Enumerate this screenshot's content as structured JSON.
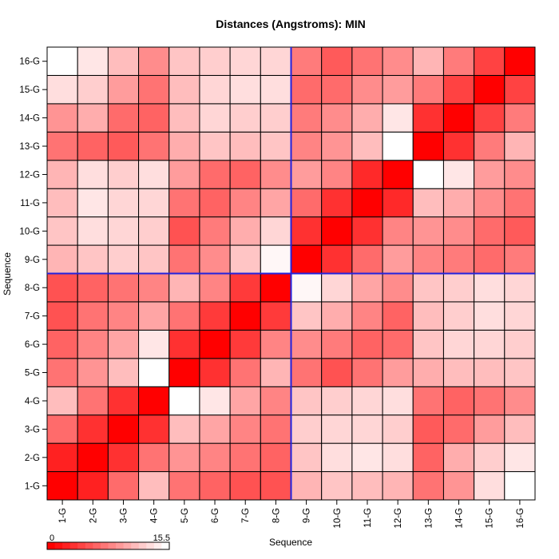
{
  "chart_data": {
    "type": "heatmap",
    "title": "Distances (Angstroms):  MIN",
    "xlabel": "Sequence",
    "ylabel": "Sequence",
    "categories": [
      "1-G",
      "2-G",
      "3-G",
      "4-G",
      "5-G",
      "6-G",
      "7-G",
      "8-G",
      "9-G",
      "10-G",
      "11-G",
      "12-G",
      "13-G",
      "14-G",
      "15-G",
      "16-G"
    ],
    "value_range": [
      0,
      15.5
    ],
    "color_scale": {
      "low": "#ff0000",
      "high": "#ffffff"
    },
    "divider_color": "#2222dd",
    "divider_after_index": 8,
    "legend": {
      "min_label": "0",
      "max_label": "15.5",
      "placement": "bottom-left"
    },
    "matrix_rows_bottom_to_top": [
      [
        0.0,
        2.0,
        6.5,
        11.5,
        7.0,
        6.0,
        5.0,
        5.0,
        11.0,
        12.0,
        11.5,
        11.0,
        7.0,
        9.0,
        13.5,
        15.5
      ],
      [
        2.0,
        0.0,
        3.0,
        7.0,
        9.0,
        8.0,
        7.0,
        6.0,
        12.0,
        13.5,
        14.0,
        13.5,
        6.0,
        10.5,
        12.5,
        14.0
      ],
      [
        6.5,
        3.0,
        0.0,
        3.0,
        11.5,
        10.0,
        8.0,
        7.0,
        12.5,
        13.0,
        13.0,
        12.5,
        5.5,
        6.5,
        9.5,
        11.5
      ],
      [
        11.5,
        7.0,
        3.0,
        0.0,
        15.5,
        14.0,
        10.0,
        8.0,
        12.0,
        12.5,
        13.0,
        13.5,
        7.0,
        6.0,
        7.0,
        8.5
      ],
      [
        7.0,
        9.0,
        11.5,
        15.5,
        0.0,
        3.0,
        7.0,
        11.0,
        7.0,
        5.0,
        7.0,
        9.5,
        10.5,
        11.5,
        11.5,
        12.0
      ],
      [
        6.0,
        8.0,
        10.0,
        14.0,
        3.0,
        0.0,
        3.5,
        8.0,
        8.5,
        7.5,
        6.0,
        6.5,
        12.0,
        13.0,
        13.0,
        12.5
      ],
      [
        5.0,
        7.0,
        8.0,
        10.0,
        7.0,
        3.5,
        0.0,
        3.5,
        12.0,
        10.5,
        8.0,
        6.0,
        11.5,
        12.5,
        13.5,
        13.0
      ],
      [
        5.0,
        6.0,
        7.0,
        8.0,
        11.0,
        8.0,
        3.5,
        0.0,
        15.0,
        13.0,
        10.0,
        8.5,
        12.0,
        12.5,
        13.5,
        13.0
      ],
      [
        11.0,
        12.0,
        12.5,
        12.0,
        7.0,
        8.5,
        12.0,
        15.0,
        0.0,
        3.0,
        6.5,
        9.5,
        8.0,
        7.5,
        6.5,
        7.5
      ],
      [
        12.0,
        13.5,
        13.0,
        12.5,
        5.0,
        7.5,
        10.5,
        13.0,
        3.0,
        0.0,
        3.0,
        8.0,
        9.0,
        8.5,
        6.5,
        5.5
      ],
      [
        11.5,
        14.0,
        13.0,
        13.0,
        7.0,
        6.0,
        8.0,
        10.0,
        6.5,
        3.0,
        0.0,
        2.5,
        11.5,
        10.5,
        8.5,
        7.0
      ],
      [
        11.0,
        13.5,
        12.5,
        13.5,
        9.5,
        6.5,
        6.0,
        8.5,
        9.5,
        8.0,
        2.5,
        0.0,
        15.5,
        14.0,
        9.5,
        8.5
      ],
      [
        7.0,
        6.0,
        5.5,
        7.0,
        10.5,
        12.0,
        11.5,
        12.0,
        8.0,
        9.0,
        11.5,
        15.5,
        0.0,
        3.0,
        7.5,
        11.0
      ],
      [
        9.0,
        10.5,
        6.5,
        6.0,
        11.5,
        13.0,
        12.5,
        12.5,
        7.5,
        8.5,
        10.5,
        14.0,
        3.0,
        0.0,
        4.0,
        7.5
      ],
      [
        13.5,
        12.5,
        9.5,
        7.0,
        11.5,
        13.0,
        13.5,
        13.5,
        6.5,
        6.5,
        8.5,
        9.5,
        7.5,
        4.0,
        0.0,
        4.0
      ],
      [
        15.5,
        14.0,
        11.5,
        8.5,
        12.0,
        12.5,
        13.0,
        13.0,
        7.5,
        5.5,
        7.0,
        8.5,
        11.0,
        7.5,
        4.0,
        0.0
      ]
    ]
  }
}
